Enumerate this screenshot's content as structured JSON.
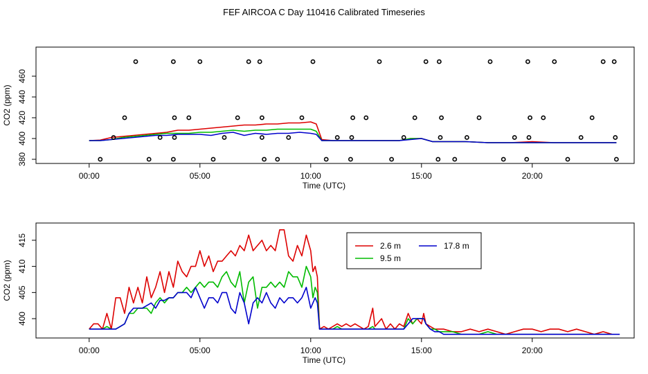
{
  "title": "FEF AIRCOA C  Day 110416  Calibrated Timeseries",
  "colors": {
    "red": "#dd0000",
    "green": "#00bb00",
    "blue": "#0000cc",
    "marker": "#000000"
  },
  "chart_data": [
    {
      "type": "scatter",
      "xlabel": "Time (UTC)",
      "ylabel": "CO2 (ppm)",
      "xlim": [
        -2.4,
        24.6
      ],
      "ylim": [
        376,
        488
      ],
      "x_ticks": [
        {
          "v": 0,
          "label": "00:00"
        },
        {
          "v": 5,
          "label": "05:00"
        },
        {
          "v": 10,
          "label": "10:00"
        },
        {
          "v": 15,
          "label": "15:00"
        },
        {
          "v": 20,
          "label": "20:00"
        }
      ],
      "y_ticks": [
        {
          "v": 380,
          "label": "380"
        },
        {
          "v": 400,
          "label": "400"
        },
        {
          "v": 420,
          "label": "420"
        },
        {
          "v": 440,
          "label": "440"
        },
        {
          "v": 460,
          "label": "460"
        }
      ],
      "grid": false,
      "series": [
        {
          "color_key": "red",
          "x": [
            0,
            0.5,
            1.0,
            1.5,
            2.0,
            2.5,
            3.0,
            3.5,
            4.0,
            4.5,
            5.0,
            5.5,
            6.0,
            6.5,
            7.0,
            7.5,
            8.0,
            8.5,
            9.0,
            9.5,
            10.0,
            10.25,
            10.5,
            11.0,
            12.0,
            13.0,
            14.0,
            14.5,
            15.0,
            15.5,
            16.0,
            17.0,
            18.0,
            19.0,
            20.0,
            21.0,
            22.0,
            23.0,
            23.8
          ],
          "values": [
            398,
            398.5,
            401,
            402,
            403,
            404,
            405,
            406,
            408,
            408,
            409,
            410,
            411,
            412,
            413,
            413,
            414,
            414,
            415,
            415,
            416,
            414,
            399,
            398,
            398,
            398,
            398,
            400,
            400,
            397,
            397,
            397,
            396,
            396,
            397,
            396,
            396,
            396,
            396
          ]
        },
        {
          "color_key": "green",
          "x": [
            0,
            0.5,
            1.0,
            1.5,
            2.0,
            2.5,
            3.0,
            3.5,
            4.0,
            4.5,
            5.0,
            5.5,
            6.0,
            6.5,
            7.0,
            7.5,
            8.0,
            8.5,
            9.0,
            9.5,
            10.0,
            10.25,
            10.5,
            11.0,
            12.0,
            13.0,
            14.0,
            14.5,
            15.0,
            15.5,
            16.0,
            17.0,
            18.0,
            19.0,
            20.0,
            21.0,
            22.0,
            23.0,
            23.8
          ],
          "values": [
            398,
            398,
            399,
            401,
            402,
            403,
            404,
            405,
            405,
            405,
            406,
            406,
            407,
            408,
            407,
            408,
            408,
            409,
            409,
            409,
            409,
            407,
            398,
            398,
            398,
            398,
            398,
            400,
            400,
            397,
            397,
            397,
            396,
            396,
            396,
            396,
            396,
            396,
            396
          ]
        },
        {
          "color_key": "blue",
          "x": [
            0,
            0.5,
            1.0,
            1.5,
            2.0,
            2.5,
            3.0,
            3.5,
            4.0,
            4.5,
            5.0,
            5.5,
            6.0,
            6.5,
            7.0,
            7.5,
            8.0,
            8.5,
            9.0,
            9.5,
            10.0,
            10.25,
            10.5,
            11.0,
            12.0,
            13.0,
            14.0,
            14.5,
            15.0,
            15.5,
            16.0,
            17.0,
            18.0,
            19.0,
            20.0,
            21.0,
            22.0,
            23.0,
            23.8
          ],
          "values": [
            398,
            398,
            399,
            400,
            401,
            402,
            403,
            403,
            404,
            404,
            404,
            403,
            405,
            406,
            403,
            405,
            404,
            405,
            405,
            406,
            405,
            404,
            398,
            398,
            398,
            398,
            398,
            399,
            400,
            397,
            397,
            397,
            396,
            396,
            396,
            396,
            396,
            396,
            396
          ]
        }
      ],
      "markers": {
        "x": [
          0.5,
          1.1,
          1.6,
          2.1,
          2.7,
          3.2,
          3.8,
          3.8,
          3.85,
          3.85,
          4.5,
          5.0,
          5.6,
          6.1,
          6.7,
          7.2,
          7.7,
          7.8,
          7.8,
          7.9,
          8.5,
          9.0,
          9.6,
          10.1,
          10.7,
          11.2,
          11.8,
          11.85,
          11.9,
          12.5,
          13.1,
          13.65,
          14.2,
          14.7,
          15.2,
          15.75,
          15.8,
          15.85,
          15.9,
          16.5,
          17.05,
          17.6,
          18.1,
          18.7,
          19.2,
          19.75,
          19.8,
          19.85,
          19.9,
          20.5,
          21.0,
          21.6,
          22.2,
          22.7,
          23.2,
          23.7,
          23.75,
          23.8
        ],
        "y": [
          380,
          401,
          420,
          474,
          380,
          401,
          380,
          474,
          401,
          420,
          420,
          474,
          380,
          401,
          420,
          474,
          474,
          401,
          420,
          380,
          380,
          401,
          420,
          474,
          380,
          401,
          380,
          401,
          420,
          420,
          474,
          380,
          401,
          420,
          474,
          380,
          474,
          401,
          420,
          380,
          401,
          420,
          474,
          380,
          401,
          380,
          474,
          401,
          420,
          420,
          474,
          380,
          401,
          420,
          474,
          474,
          401,
          380
        ]
      }
    },
    {
      "type": "line",
      "xlabel": "Time (UTC)",
      "ylabel": "CO2 (ppm)",
      "xlim": [
        -2.4,
        24.6
      ],
      "ylim": [
        396.3,
        418.3
      ],
      "x_ticks": [
        {
          "v": 0,
          "label": "00:00"
        },
        {
          "v": 5,
          "label": "05:00"
        },
        {
          "v": 10,
          "label": "10:00"
        },
        {
          "v": 15,
          "label": "15:00"
        },
        {
          "v": 20,
          "label": "20:00"
        }
      ],
      "y_ticks": [
        {
          "v": 400,
          "label": "400"
        },
        {
          "v": 405,
          "label": "405"
        },
        {
          "v": 410,
          "label": "410"
        },
        {
          "v": 415,
          "label": "415"
        }
      ],
      "grid": false,
      "legend_position": "top-right",
      "series": [
        {
          "name": "2.6 m",
          "color_key": "red",
          "x": [
            0,
            0.2,
            0.4,
            0.6,
            0.8,
            1.0,
            1.2,
            1.4,
            1.6,
            1.8,
            2.0,
            2.2,
            2.4,
            2.6,
            2.8,
            3.0,
            3.2,
            3.4,
            3.6,
            3.8,
            4.0,
            4.2,
            4.4,
            4.6,
            4.8,
            5.0,
            5.2,
            5.4,
            5.6,
            5.8,
            6.0,
            6.2,
            6.4,
            6.6,
            6.8,
            7.0,
            7.2,
            7.4,
            7.6,
            7.8,
            8.0,
            8.2,
            8.4,
            8.6,
            8.8,
            9.0,
            9.2,
            9.4,
            9.6,
            9.8,
            10.0,
            10.1,
            10.2,
            10.3,
            10.4,
            10.6,
            10.8,
            11.0,
            11.2,
            11.4,
            11.6,
            11.8,
            12.0,
            12.2,
            12.4,
            12.6,
            12.8,
            12.9,
            13.0,
            13.2,
            13.4,
            13.6,
            13.8,
            14.0,
            14.2,
            14.4,
            14.6,
            14.8,
            15.0,
            15.1,
            15.2,
            15.4,
            15.6,
            15.8,
            16.0,
            16.4,
            16.8,
            17.2,
            17.6,
            18.0,
            18.4,
            18.8,
            19.2,
            19.6,
            20.0,
            20.4,
            20.8,
            21.2,
            21.6,
            22.0,
            22.4,
            22.8,
            23.2,
            23.6
          ],
          "values": [
            398,
            399,
            399,
            398,
            401,
            398,
            404,
            404,
            401,
            406,
            403,
            406,
            403,
            408,
            404,
            406,
            409,
            405,
            409,
            406,
            411,
            409,
            408,
            410,
            410,
            413,
            410,
            412,
            409,
            411,
            411,
            412,
            413,
            412,
            414,
            413,
            416,
            413,
            414,
            415,
            413,
            414,
            413,
            417,
            417,
            412,
            411,
            414,
            412,
            416,
            413,
            409,
            410,
            408,
            398,
            398.5,
            398,
            398.5,
            399,
            398.5,
            399,
            398.5,
            399,
            398.5,
            398,
            398.5,
            402,
            398.5,
            399,
            400,
            398,
            399,
            398,
            399,
            398.5,
            401,
            399,
            400,
            399,
            401,
            399,
            398.5,
            398,
            398,
            398,
            397.5,
            397.5,
            398,
            397.5,
            398,
            397.5,
            397,
            397.5,
            398,
            398,
            397.5,
            398,
            398,
            397.5,
            398,
            397.5,
            397,
            397.5,
            397
          ]
        },
        {
          "name": "9.5 m",
          "color_key": "green",
          "x": [
            0,
            0.2,
            0.4,
            0.6,
            0.8,
            1.0,
            1.2,
            1.4,
            1.6,
            1.8,
            2.0,
            2.2,
            2.4,
            2.6,
            2.8,
            3.0,
            3.2,
            3.4,
            3.6,
            3.8,
            4.0,
            4.2,
            4.4,
            4.6,
            4.8,
            5.0,
            5.2,
            5.4,
            5.6,
            5.8,
            6.0,
            6.2,
            6.4,
            6.6,
            6.8,
            7.0,
            7.2,
            7.4,
            7.6,
            7.8,
            8.0,
            8.2,
            8.4,
            8.6,
            8.8,
            9.0,
            9.2,
            9.4,
            9.6,
            9.8,
            10.0,
            10.1,
            10.2,
            10.3,
            10.4,
            10.6,
            10.8,
            11.0,
            11.2,
            11.4,
            11.6,
            11.8,
            12.0,
            12.2,
            12.4,
            12.6,
            12.8,
            12.9,
            13.0,
            13.2,
            13.4,
            13.6,
            13.8,
            14.0,
            14.2,
            14.4,
            14.6,
            14.8,
            15.0,
            15.1,
            15.2,
            15.4,
            15.6,
            15.8,
            16.0,
            16.4,
            16.8,
            17.2,
            17.6,
            18.0,
            18.4,
            18.8,
            19.2,
            19.6,
            20.0,
            20.4,
            20.8,
            21.2,
            21.6,
            22.0,
            22.4,
            22.8,
            23.2,
            23.6
          ],
          "values": [
            398,
            398,
            398,
            398,
            398.5,
            398,
            398,
            398.5,
            399,
            401,
            401,
            402,
            402,
            402,
            401,
            403,
            404,
            403,
            404,
            404,
            405,
            405,
            406,
            405,
            406,
            407,
            406,
            407,
            407,
            406,
            408,
            409,
            407,
            406,
            409,
            403,
            407,
            408,
            402,
            406,
            406,
            407,
            406,
            407,
            406,
            409,
            408,
            408,
            406,
            410,
            408,
            404,
            406,
            405,
            398,
            398,
            398,
            398,
            398.5,
            398,
            398,
            398,
            398,
            398,
            398,
            398,
            398.5,
            398,
            398,
            398,
            398,
            398,
            398,
            398,
            398,
            400,
            399,
            400,
            400,
            400,
            399,
            398,
            398,
            397.5,
            397.5,
            397.5,
            397,
            397,
            397,
            397.5,
            397,
            397,
            397,
            397,
            397,
            397,
            397,
            397,
            397,
            397,
            397,
            397,
            397,
            397
          ]
        },
        {
          "name": "17.8 m",
          "color_key": "blue",
          "x": [
            0,
            0.2,
            0.4,
            0.6,
            0.8,
            1.0,
            1.2,
            1.4,
            1.6,
            1.8,
            2.0,
            2.2,
            2.4,
            2.6,
            2.8,
            3.0,
            3.2,
            3.4,
            3.6,
            3.8,
            4.0,
            4.2,
            4.4,
            4.6,
            4.8,
            5.0,
            5.2,
            5.4,
            5.6,
            5.8,
            6.0,
            6.2,
            6.4,
            6.6,
            6.8,
            7.0,
            7.2,
            7.4,
            7.6,
            7.8,
            8.0,
            8.2,
            8.4,
            8.6,
            8.8,
            9.0,
            9.2,
            9.4,
            9.6,
            9.8,
            10.0,
            10.1,
            10.2,
            10.3,
            10.4,
            10.6,
            10.8,
            11.0,
            11.2,
            11.4,
            11.6,
            11.8,
            12.0,
            12.2,
            12.4,
            12.6,
            12.8,
            12.9,
            13.0,
            13.2,
            13.4,
            13.6,
            13.8,
            14.0,
            14.2,
            14.4,
            14.6,
            14.8,
            15.0,
            15.1,
            15.2,
            15.4,
            15.6,
            15.8,
            16.0,
            16.4,
            16.8,
            17.2,
            17.6,
            18.0,
            18.4,
            18.8,
            19.2,
            19.6,
            20.0,
            20.4,
            20.8,
            21.2,
            21.6,
            22.0,
            22.4,
            22.8,
            23.2,
            23.6,
            23.95
          ],
          "values": [
            398,
            398,
            398,
            398,
            398,
            398,
            398,
            398.5,
            399,
            401,
            402,
            402,
            402,
            402.5,
            403,
            402,
            403.5,
            403.5,
            404,
            404,
            405,
            405,
            405,
            404,
            406,
            404,
            402,
            404,
            404,
            403,
            405,
            405,
            402,
            401,
            405,
            403,
            399,
            403,
            404,
            403,
            405,
            403,
            402,
            404,
            403,
            404,
            404,
            403,
            404,
            406,
            402,
            403,
            404,
            403,
            398,
            398,
            398,
            398,
            398,
            398,
            398,
            398,
            398,
            398,
            398,
            398,
            398,
            398,
            398,
            398,
            398,
            398,
            398,
            398,
            398,
            399,
            400,
            400,
            400,
            400,
            399,
            398,
            397.5,
            397.5,
            397,
            397,
            397,
            397,
            397,
            397,
            397,
            397,
            397,
            397,
            397,
            397,
            397,
            397,
            397,
            397,
            397,
            397,
            397,
            397,
            397
          ]
        }
      ]
    }
  ]
}
